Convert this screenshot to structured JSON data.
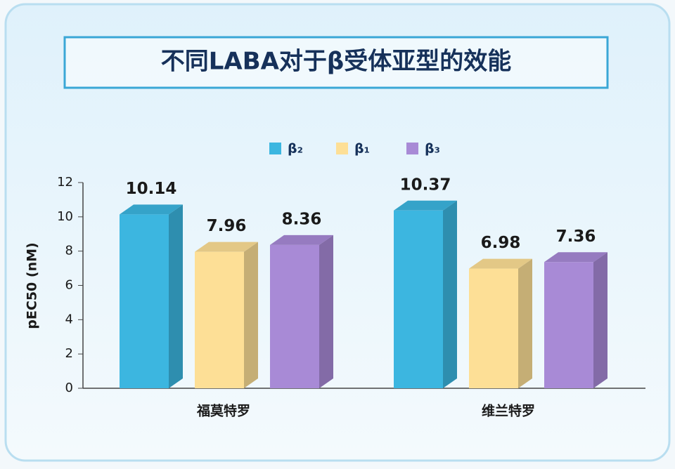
{
  "chart_data": {
    "type": "bar",
    "title": "不同LABA对于β受体亚型的效能",
    "y_label": "pEC50 (nM)",
    "categories": [
      "福莫特罗",
      "维兰特罗"
    ],
    "series": [
      {
        "name": "β₂",
        "color": "#3cb6e0",
        "values": [
          10.14,
          10.37
        ]
      },
      {
        "name": "β₁",
        "color": "#fddf96",
        "values": [
          7.96,
          6.98
        ]
      },
      {
        "name": "β₃",
        "color": "#a88ad6",
        "values": [
          8.36,
          7.36
        ]
      }
    ],
    "ylim": [
      0,
      12
    ],
    "yticks": [
      0,
      2,
      4,
      6,
      8,
      10,
      12
    ],
    "grid": false,
    "legend": "top"
  }
}
